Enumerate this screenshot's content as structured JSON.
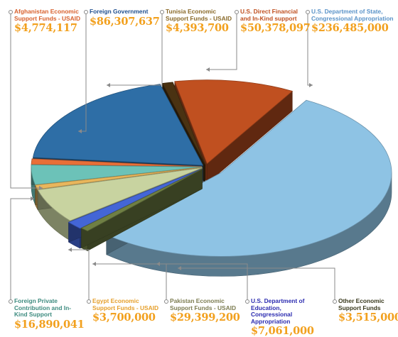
{
  "chart_data": {
    "type": "pie",
    "units": "USD",
    "slices": [
      {
        "label": "U.S. Department of State, Congressional Appropriation",
        "value_text": "$236,485,000",
        "value": 236485000,
        "color": "#8ec3e4",
        "label_color": "#5a93c8"
      },
      {
        "label": "Other Economic Support Funds",
        "value_text": "$3,515,000",
        "value": 3515000,
        "color": "#6f7f44",
        "label_color": "#3a3a1e"
      },
      {
        "label": "U.S. Department of Education, Congressional Appropriation",
        "value_text": "$7,061,000",
        "value": 7061000,
        "color": "#4466d6",
        "label_color": "#2b2bb0"
      },
      {
        "label": "Pakistan Economic Support Funds - USAID",
        "value_text": "$29,399,200",
        "value": 29399200,
        "color": "#c8d3a0",
        "label_color": "#7d7d52"
      },
      {
        "label": "Egypt Economic Support Funds - USAID",
        "value_text": "$3,700,000",
        "value": 3700000,
        "color": "#e8b65c",
        "label_color": "#e6a02c"
      },
      {
        "label": "Foreign Private Contribution and In-Kind Support",
        "value_text": "$16,890,041",
        "value": 16890041,
        "color": "#6cc2b8",
        "label_color": "#3d8b7f"
      },
      {
        "label": "Afghanistan Economic Support Funds - USAID",
        "value_text": "$4,774,117",
        "value": 4774117,
        "color": "#e86f38",
        "label_color": "#d8602c"
      },
      {
        "label": "Foreign Government",
        "value_text": "$86,307,637",
        "value": 86307637,
        "color": "#2e6ea6",
        "label_color": "#1f4f8f"
      },
      {
        "label": "Tunisia Economic Support Funds - USAID",
        "value_text": "$4,393,700",
        "value": 4393700,
        "color": "#4a3212",
        "label_color": "#8a6a2a"
      },
      {
        "label": "U.S. Direct Financial and In-Kind support",
        "value_text": "$50,378,097",
        "value": 50378097,
        "color": "#c05020",
        "label_color": "#c05020"
      }
    ]
  }
}
